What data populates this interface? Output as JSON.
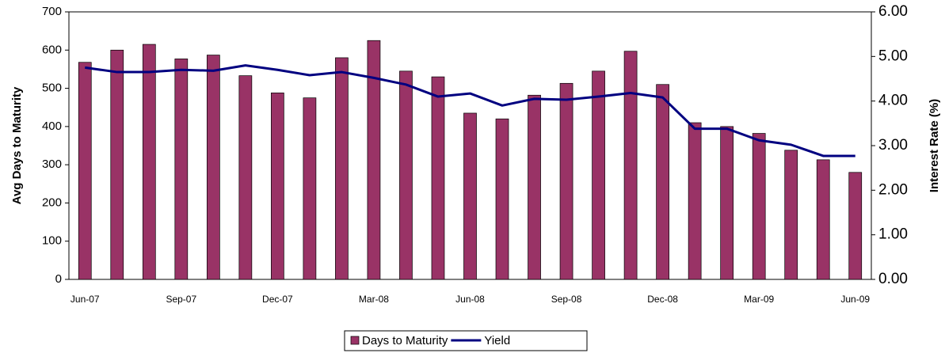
{
  "chart_data": {
    "type": "bar-line",
    "categories": [
      "Jun-07",
      null,
      null,
      "Sep-07",
      null,
      null,
      "Dec-07",
      null,
      null,
      "Mar-08",
      null,
      null,
      "Jun-08",
      null,
      null,
      "Sep-08",
      null,
      null,
      "Dec-08",
      null,
      null,
      "Mar-09",
      null,
      null,
      "Jun-09"
    ],
    "series": [
      {
        "name": "Days to Maturity",
        "type": "bar",
        "color": "#993366",
        "values": [
          568,
          600,
          615,
          577,
          587,
          533,
          488,
          475,
          580,
          625,
          545,
          530,
          435,
          420,
          482,
          513,
          545,
          597,
          510,
          410,
          400,
          382,
          338,
          313,
          280
        ]
      },
      {
        "name": "Yield",
        "type": "line",
        "axis": "y2",
        "color": "#000080",
        "values": [
          4.75,
          4.65,
          4.65,
          4.7,
          4.68,
          4.8,
          4.7,
          4.58,
          4.65,
          4.52,
          4.37,
          4.1,
          4.17,
          3.9,
          4.05,
          4.03,
          4.1,
          4.18,
          4.08,
          3.38,
          3.38,
          3.12,
          3.02,
          2.77,
          2.77
        ]
      }
    ],
    "ylabel": "Avg Days to Maturity",
    "y2label": "Interest Rate (%)",
    "ylim": [
      0,
      700
    ],
    "yticks": [
      0,
      100,
      200,
      300,
      400,
      500,
      600,
      700
    ],
    "y2lim": [
      0,
      6
    ],
    "y2ticks": [
      {
        "value": 0,
        "label": "0.00"
      },
      {
        "value": 1,
        "label": "1.00"
      },
      {
        "value": 2,
        "label": "2.00"
      },
      {
        "value": 3,
        "label": "3.00"
      },
      {
        "value": 4,
        "label": "4.00"
      },
      {
        "value": 5,
        "label": "5.00"
      },
      {
        "value": 6,
        "label": "6.00"
      }
    ],
    "grid": false,
    "legend": "bottom"
  }
}
